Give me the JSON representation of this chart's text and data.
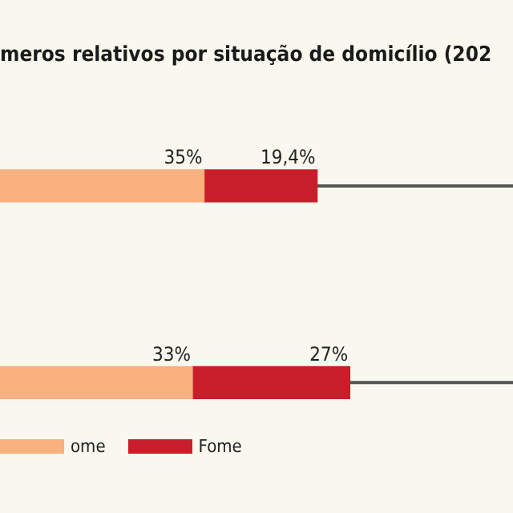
{
  "chart_data": {
    "type": "bar",
    "orientation": "horizontal",
    "stacked": true,
    "title": "meros relativos por situação de domicílio (202",
    "categories": [
      null,
      null
    ],
    "xlim": [
      0,
      88
    ],
    "series": [
      {
        "name": "ome",
        "color": "#f7b07e",
        "values": [
          35,
          33
        ],
        "value_labels": [
          "35%",
          "33%"
        ]
      },
      {
        "name": "Fome",
        "color": "#c81e2a",
        "values": [
          19.4,
          27
        ],
        "value_labels": [
          "19,4%",
          "27%"
        ]
      }
    ],
    "grid": false,
    "tick_labels": false,
    "legend": "bottom left"
  }
}
